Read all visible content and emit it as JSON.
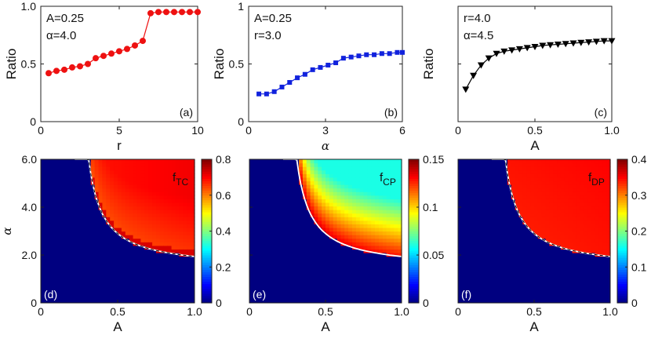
{
  "chart_data": [
    {
      "id": "a",
      "type": "line",
      "panel_label": "(a)",
      "xlabel": "r",
      "ylabel": "Ratio",
      "xlim": [
        0,
        10
      ],
      "ylim": [
        0,
        1
      ],
      "xticks": [
        0,
        5,
        10
      ],
      "xtick_labels": [
        "0",
        "5",
        "10"
      ],
      "yticks": [
        0,
        0.5,
        1
      ],
      "ytick_labels": [
        "0",
        "0.5",
        "1.0"
      ],
      "annotations": [
        "A=0.25",
        "α=4.0"
      ],
      "color": "#ee1111",
      "marker": "circle",
      "x": [
        0.5,
        1.0,
        1.5,
        2.0,
        2.5,
        3.0,
        3.5,
        4.0,
        4.5,
        5.0,
        5.5,
        6.0,
        6.5,
        7.0,
        7.5,
        8.0,
        8.5,
        9.0,
        9.5,
        10.0
      ],
      "y": [
        0.42,
        0.44,
        0.45,
        0.47,
        0.48,
        0.5,
        0.55,
        0.57,
        0.59,
        0.61,
        0.63,
        0.66,
        0.7,
        0.94,
        0.95,
        0.95,
        0.95,
        0.95,
        0.95,
        0.95
      ]
    },
    {
      "id": "b",
      "type": "line",
      "panel_label": "(b)",
      "xlabel": "α",
      "ylabel": "Ratio",
      "xlim": [
        0,
        6
      ],
      "ylim": [
        0,
        1
      ],
      "xticks": [
        0,
        3,
        6
      ],
      "xtick_labels": [
        "0",
        "3",
        "6"
      ],
      "yticks": [
        0,
        0.5,
        1
      ],
      "ytick_labels": [
        "0",
        "0.5",
        "1"
      ],
      "annotations": [
        "A=0.25",
        "r=3.0"
      ],
      "color": "#1122dd",
      "marker": "square",
      "x": [
        0.4,
        0.7,
        1.0,
        1.3,
        1.6,
        1.9,
        2.2,
        2.5,
        2.8,
        3.1,
        3.4,
        3.7,
        4.0,
        4.3,
        4.6,
        4.9,
        5.2,
        5.5,
        5.8,
        6.0
      ],
      "y": [
        0.24,
        0.24,
        0.26,
        0.3,
        0.34,
        0.38,
        0.41,
        0.45,
        0.47,
        0.49,
        0.51,
        0.55,
        0.56,
        0.57,
        0.58,
        0.58,
        0.59,
        0.59,
        0.6,
        0.6
      ]
    },
    {
      "id": "c",
      "type": "line",
      "panel_label": "(c)",
      "xlabel": "A",
      "ylabel": "Ratio",
      "xlim": [
        0,
        1
      ],
      "ylim": [
        0,
        1
      ],
      "xticks": [
        0,
        0.5,
        1
      ],
      "xtick_labels": [
        "0",
        "0.5",
        "1.0"
      ],
      "yticks": [
        0,
        0.5,
        1
      ],
      "ytick_labels": [
        "",
        "",
        ""
      ],
      "annotations": [
        "r=4.0",
        "α=4.5"
      ],
      "color": "#000000",
      "marker": "triangle-down",
      "x": [
        0.05,
        0.1,
        0.15,
        0.2,
        0.25,
        0.3,
        0.35,
        0.4,
        0.45,
        0.5,
        0.55,
        0.6,
        0.65,
        0.7,
        0.75,
        0.8,
        0.85,
        0.9,
        0.95,
        1.0
      ],
      "y": [
        0.28,
        0.4,
        0.49,
        0.55,
        0.59,
        0.61,
        0.62,
        0.63,
        0.64,
        0.65,
        0.66,
        0.665,
        0.67,
        0.675,
        0.68,
        0.685,
        0.69,
        0.695,
        0.7,
        0.7
      ]
    },
    {
      "id": "d",
      "type": "heatmap",
      "panel_label": "(d)",
      "field_label": "f",
      "field_sub": "TC",
      "xlabel": "A",
      "ylabel": "α",
      "xlim": [
        0,
        1
      ],
      "ylim": [
        0,
        6
      ],
      "xticks": [
        0,
        0.5,
        1
      ],
      "xtick_labels": [
        "0",
        "0.5",
        "1.0"
      ],
      "yticks": [
        0,
        2,
        4,
        6
      ],
      "ytick_labels": [
        "0",
        "2.0",
        "4.0",
        "6.0"
      ],
      "boundary_k": 0.42,
      "boundary_x0": 0.22,
      "low_value": 0.0,
      "region_min": 0.62,
      "region_max": 0.71,
      "region_gradient": "increasing-with-A",
      "colorbar": {
        "min": 0,
        "max": 0.8,
        "ticks": [
          0,
          0.2,
          0.4,
          0.6,
          0.8
        ],
        "tick_labels": [
          "0",
          "0.2",
          "0.4",
          "0.6",
          "0.8"
        ]
      }
    },
    {
      "id": "e",
      "type": "heatmap",
      "panel_label": "(e)",
      "field_label": "f",
      "field_sub": "CP",
      "xlabel": "A",
      "ylabel": "",
      "xlim": [
        0,
        1
      ],
      "ylim": [
        0,
        6
      ],
      "xticks": [
        0,
        0.5,
        1
      ],
      "xtick_labels": [
        "0",
        "0.5",
        "1.0"
      ],
      "yticks": [
        0,
        2,
        4,
        6
      ],
      "ytick_labels": [
        "",
        "",
        "",
        ""
      ],
      "boundary_k": 0.42,
      "boundary_x0": 0.22,
      "low_value": 0.0,
      "region_min": 0.06,
      "region_max": 0.14,
      "region_gradient": "decreasing-with-distance",
      "colorbar": {
        "min": 0,
        "max": 0.15,
        "ticks": [
          0,
          0.05,
          0.1,
          0.15
        ],
        "tick_labels": [
          "0",
          "0.05",
          "0.1",
          "0.15"
        ]
      }
    },
    {
      "id": "f",
      "type": "heatmap",
      "panel_label": "(f)",
      "field_label": "f",
      "field_sub": "DP",
      "xlabel": "A",
      "ylabel": "",
      "xlim": [
        0,
        1
      ],
      "ylim": [
        0,
        6
      ],
      "xticks": [
        0,
        0.5,
        1
      ],
      "xtick_labels": [
        "0",
        "0.5",
        "1.0"
      ],
      "yticks": [
        0,
        2,
        4,
        6
      ],
      "ytick_labels": [
        "",
        "",
        "",
        ""
      ],
      "boundary_k": 0.42,
      "boundary_x0": 0.22,
      "low_value": 0.0,
      "region_min": 0.33,
      "region_max": 0.35,
      "region_gradient": "flat",
      "colorbar": {
        "min": 0,
        "max": 0.4,
        "ticks": [
          0,
          0.1,
          0.2,
          0.3,
          0.4
        ],
        "tick_labels": [
          "0",
          "0.1",
          "0.2",
          "0.3",
          "0.4"
        ]
      }
    }
  ]
}
